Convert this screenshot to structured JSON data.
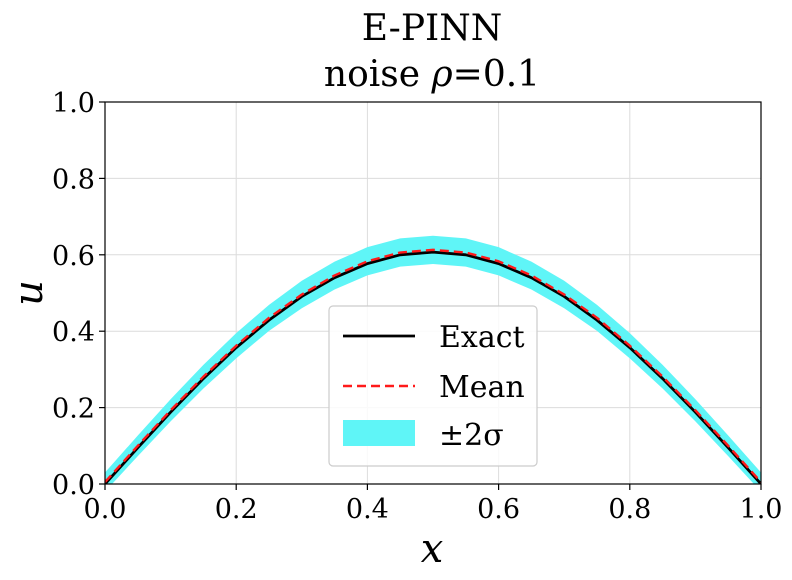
{
  "chart_data": {
    "type": "line",
    "title": "E-PINN",
    "subtitle_prefix": "noise ",
    "subtitle_symbol": "ρ",
    "subtitle_suffix": "=0.1",
    "xlabel": "x",
    "ylabel": "u",
    "xlim": [
      0.0,
      1.0
    ],
    "ylim": [
      0.0,
      1.0
    ],
    "x_ticks": [
      0.0,
      0.2,
      0.4,
      0.6,
      0.8,
      1.0
    ],
    "x_tick_labels": [
      "0.0",
      "0.2",
      "0.4",
      "0.6",
      "0.8",
      "1.0"
    ],
    "y_ticks": [
      0.0,
      0.2,
      0.4,
      0.6,
      0.8,
      1.0
    ],
    "y_tick_labels": [
      "0.0",
      "0.2",
      "0.4",
      "0.6",
      "0.8",
      "1.0"
    ],
    "grid": true,
    "legend_position": "lower center",
    "x": [
      0.0,
      0.05,
      0.1,
      0.15,
      0.2,
      0.25,
      0.3,
      0.35,
      0.4,
      0.45,
      0.5,
      0.55,
      0.6,
      0.65,
      0.7,
      0.75,
      0.8,
      0.85,
      0.9,
      0.95,
      1.0
    ],
    "series": [
      {
        "name": "Exact",
        "kind": "line",
        "color": "#000000",
        "style": "solid",
        "values": [
          0.0,
          0.095,
          0.188,
          0.276,
          0.357,
          0.429,
          0.491,
          0.54,
          0.577,
          0.6,
          0.607,
          0.6,
          0.577,
          0.54,
          0.491,
          0.429,
          0.357,
          0.276,
          0.188,
          0.095,
          0.0
        ]
      },
      {
        "name": "Mean",
        "kind": "line",
        "color": "#ff1a1a",
        "style": "dashed",
        "values": [
          0.005,
          0.1,
          0.193,
          0.281,
          0.362,
          0.435,
          0.496,
          0.546,
          0.583,
          0.606,
          0.613,
          0.606,
          0.583,
          0.546,
          0.496,
          0.435,
          0.362,
          0.281,
          0.193,
          0.1,
          0.005
        ]
      },
      {
        "name": "±2σ",
        "kind": "band",
        "color": "#5ff5f7",
        "upper": [
          0.03,
          0.127,
          0.222,
          0.312,
          0.395,
          0.469,
          0.532,
          0.582,
          0.62,
          0.643,
          0.65,
          0.643,
          0.62,
          0.582,
          0.532,
          0.469,
          0.395,
          0.312,
          0.222,
          0.127,
          0.03
        ],
        "lower": [
          -0.02,
          0.073,
          0.164,
          0.25,
          0.329,
          0.401,
          0.46,
          0.509,
          0.546,
          0.569,
          0.576,
          0.569,
          0.546,
          0.509,
          0.46,
          0.401,
          0.329,
          0.25,
          0.164,
          0.073,
          -0.02
        ]
      }
    ]
  }
}
